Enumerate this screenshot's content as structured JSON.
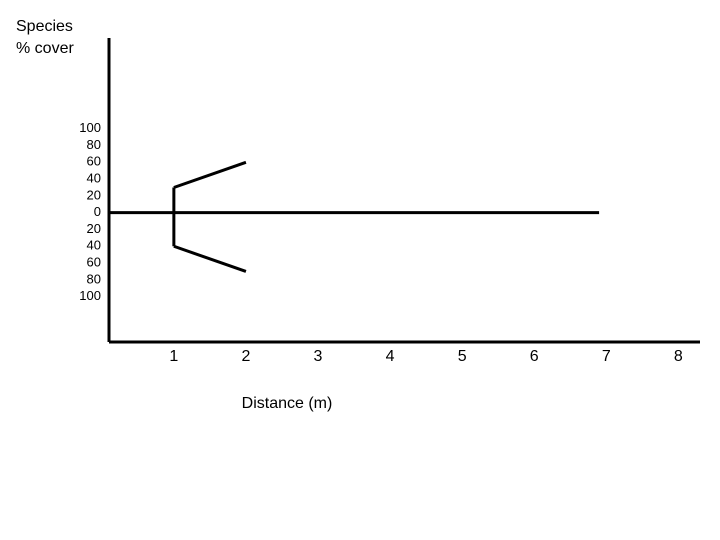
{
  "chart_data": {
    "type": "line",
    "title": null,
    "ylabel": "Species % cover",
    "xlabel": "Distance (m)",
    "xlim": [
      0.1,
      8.3
    ],
    "xticks": [
      1,
      2,
      3,
      4,
      5,
      6,
      7,
      8
    ],
    "ylim": [
      -154,
      208
    ],
    "yticks": [
      100,
      80,
      60,
      40,
      20,
      0,
      {
        "value": -20,
        "label": "20"
      },
      {
        "value": -40,
        "label": "40"
      },
      {
        "value": -60,
        "label": "60"
      },
      {
        "value": -80,
        "label": "80"
      },
      {
        "value": -100,
        "label": "100"
      }
    ],
    "grid": false,
    "color": "#000000",
    "series": [
      {
        "x": [
          1,
          2
        ],
        "values": [
          30,
          60
        ]
      },
      {
        "x": [
          1,
          2
        ],
        "values": [
          -40,
          -70
        ]
      },
      {
        "x": [
          0.1,
          6.9
        ],
        "values": [
          0,
          0
        ]
      }
    ]
  }
}
